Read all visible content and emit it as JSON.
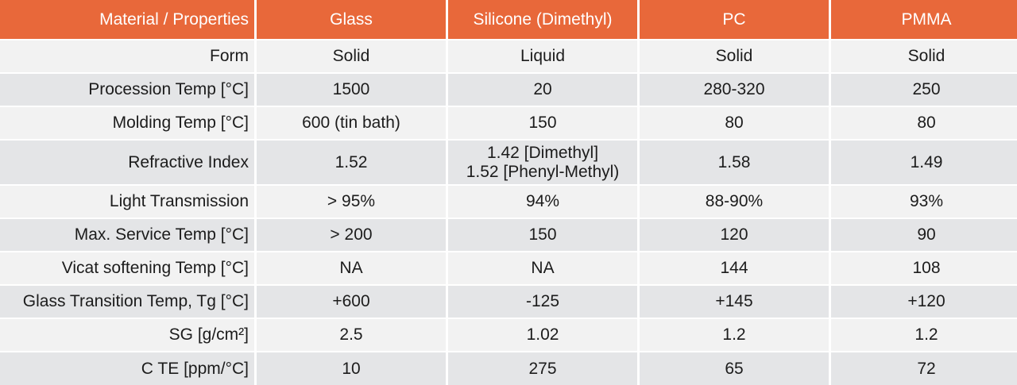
{
  "colors": {
    "header_bg": "#e8683a",
    "header_text": "#ffffff",
    "row_light": "#f2f2f2",
    "row_dark": "#e4e5e7"
  },
  "table": {
    "headers": [
      "Material / Properties",
      "Glass",
      "Silicone (Dimethyl)",
      "PC",
      "PMMA"
    ],
    "rows": [
      {
        "label": "Form",
        "values": [
          "Solid",
          "Liquid",
          "Solid",
          "Solid"
        ]
      },
      {
        "label": "Procession Temp [°C]",
        "values": [
          "1500",
          "20",
          "280-320",
          "250"
        ]
      },
      {
        "label": "Molding Temp [°C]",
        "values": [
          "600 (tin bath)",
          "150",
          "80",
          "80"
        ]
      },
      {
        "label": "Refractive Index",
        "values": [
          "1.52",
          "1.42 [Dimethyl]",
          "1.58",
          "1.49"
        ],
        "extra": "1.52 [Phenyl-Methyl)"
      },
      {
        "label": "Light Transmission",
        "values": [
          "> 95%",
          "94%",
          "88-90%",
          "93%"
        ]
      },
      {
        "label": "Max. Service Temp [°C]",
        "values": [
          "> 200",
          "150",
          "120",
          "90"
        ]
      },
      {
        "label": "Vicat softening Temp [°C]",
        "values": [
          "NA",
          "NA",
          "144",
          "108"
        ]
      },
      {
        "label": "Glass Transition Temp, Tg [°C]",
        "values": [
          "+600",
          "-125",
          "+145",
          "+120"
        ]
      },
      {
        "label": "SG [g/cm²]",
        "values": [
          "2.5",
          "1.02",
          "1.2",
          "1.2"
        ]
      },
      {
        "label": "C TE [ppm/°C]",
        "values": [
          "10",
          "275",
          "65",
          "72"
        ]
      }
    ]
  }
}
